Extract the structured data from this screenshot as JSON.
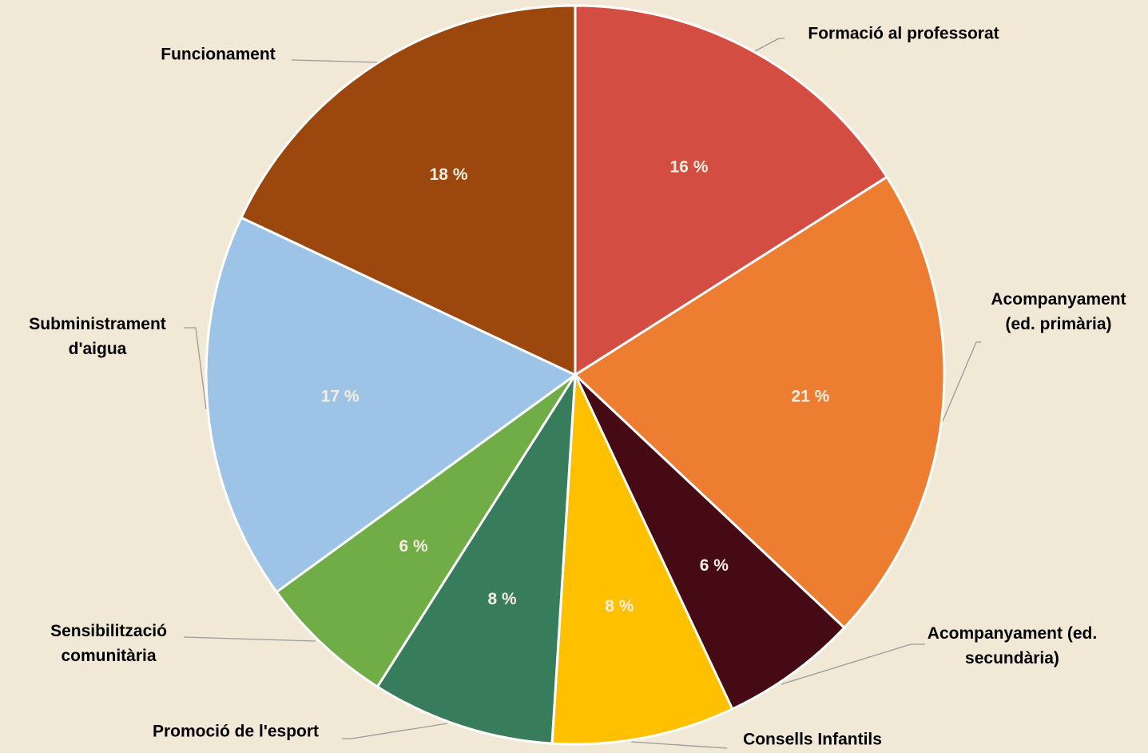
{
  "chart_data": {
    "type": "pie",
    "categories": [
      "Formació al professorat",
      "Acompanyament (ed. primària)",
      "Acompanyament (ed. secundària)",
      "Consells Infantils",
      "Promoció de l'esport",
      "Sensibilització comunitària",
      "Subministrament d'aigua",
      "Funcionament"
    ],
    "values": [
      16,
      21,
      6,
      8,
      8,
      6,
      17,
      18
    ],
    "value_labels": [
      "16 %",
      "21 %",
      "6 %",
      "8 %",
      "8 %",
      "6 %",
      "17 %",
      "18 %"
    ],
    "colors": [
      "#d44d42",
      "#ed7d31",
      "#450a13",
      "#ffc000",
      "#377d5c",
      "#70ad47",
      "#9dc3e6",
      "#9c470d"
    ]
  }
}
